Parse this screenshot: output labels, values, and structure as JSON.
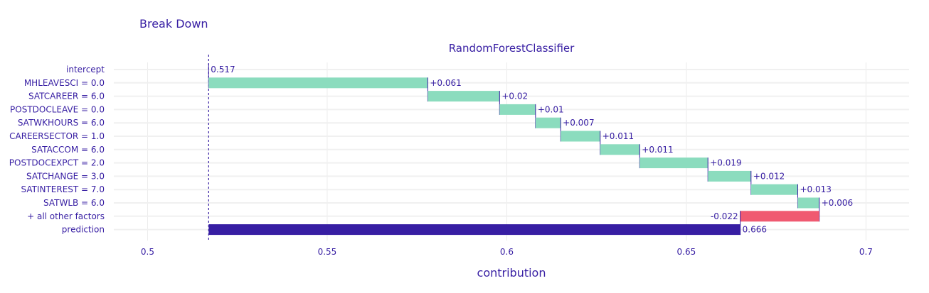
{
  "chart_data": {
    "type": "bar",
    "subtype": "waterfall-break-down",
    "title": "Break Down",
    "subtitle": "RandomForestClassifier",
    "xlabel": "contribution",
    "ylabel": "",
    "xlim": [
      0.4906,
      0.712
    ],
    "xticks": [
      0.5,
      0.55,
      0.6,
      0.65,
      0.7
    ],
    "xtick_labels": [
      "0.5",
      "0.55",
      "0.6",
      "0.65",
      "0.7"
    ],
    "intercept": 0.517,
    "grid": true,
    "legend": "none",
    "colors": {
      "positive": "#8bdcbe",
      "negative": "#f05a71",
      "prediction": "#371ea3",
      "text": "#371ea3",
      "connector": "#371ea3"
    },
    "bars": [
      {
        "variable": "intercept",
        "kind": "intercept",
        "start": 0.517,
        "end": 0.517,
        "label": "0.517"
      },
      {
        "variable": "MHLEAVESCI = 0.0",
        "kind": "positive",
        "start": 0.517,
        "end": 0.578,
        "label": "+0.061"
      },
      {
        "variable": "SATCAREER = 6.0",
        "kind": "positive",
        "start": 0.578,
        "end": 0.598,
        "label": "+0.02"
      },
      {
        "variable": "POSTDOCLEAVE = 0.0",
        "kind": "positive",
        "start": 0.598,
        "end": 0.608,
        "label": "+0.01"
      },
      {
        "variable": "SATWKHOURS = 6.0",
        "kind": "positive",
        "start": 0.608,
        "end": 0.615,
        "label": "+0.007"
      },
      {
        "variable": "CAREERSECTOR = 1.0",
        "kind": "positive",
        "start": 0.615,
        "end": 0.626,
        "label": "+0.011"
      },
      {
        "variable": "SATACCOM = 6.0",
        "kind": "positive",
        "start": 0.626,
        "end": 0.637,
        "label": "+0.011"
      },
      {
        "variable": "POSTDOCEXPCT = 2.0",
        "kind": "positive",
        "start": 0.637,
        "end": 0.656,
        "label": "+0.019"
      },
      {
        "variable": "SATCHANGE = 3.0",
        "kind": "positive",
        "start": 0.656,
        "end": 0.668,
        "label": "+0.012"
      },
      {
        "variable": "SATINTEREST = 7.0",
        "kind": "positive",
        "start": 0.668,
        "end": 0.681,
        "label": "+0.013"
      },
      {
        "variable": "SATWLB = 6.0",
        "kind": "positive",
        "start": 0.681,
        "end": 0.687,
        "label": "+0.006"
      },
      {
        "variable": "+ all other factors",
        "kind": "negative",
        "start": 0.687,
        "end": 0.665,
        "label": "-0.022"
      },
      {
        "variable": "prediction",
        "kind": "prediction",
        "start": 0.517,
        "end": 0.665,
        "label": "0.666"
      }
    ]
  }
}
